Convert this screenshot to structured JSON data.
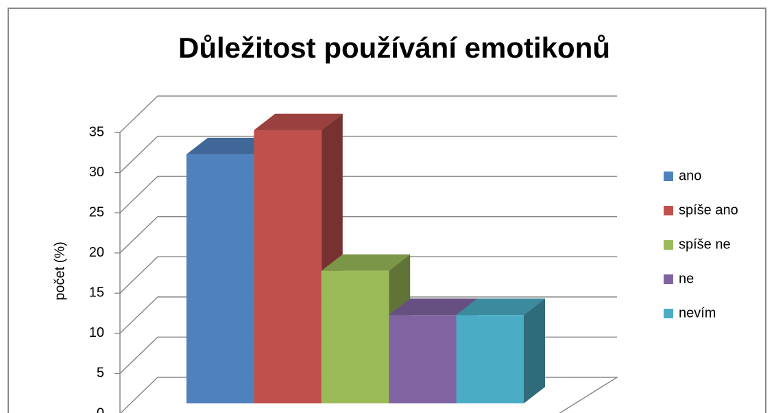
{
  "chart_data": {
    "type": "bar3d",
    "title": "Důležitost používání emotikonů",
    "y_label": "počet (%)",
    "categories": [
      "ano",
      "spíše ano",
      "spíše ne",
      "ne",
      "nevím"
    ],
    "values": [
      31,
      34,
      16.5,
      11,
      11
    ],
    "colors": [
      "#4f81bd",
      "#c0504d",
      "#9bbb59",
      "#8064a2",
      "#4bacc6"
    ],
    "ylim": [
      0,
      35
    ],
    "yticks": [
      0,
      5,
      10,
      15,
      20,
      25,
      30,
      35
    ],
    "grid": true,
    "legend": "right"
  }
}
